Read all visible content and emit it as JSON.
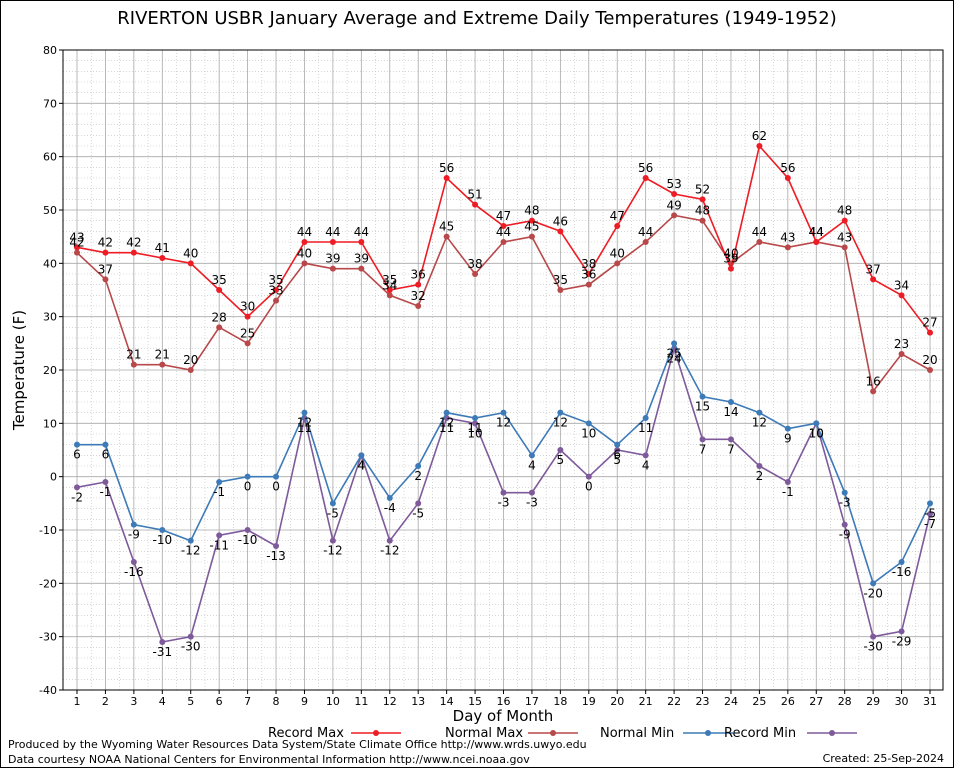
{
  "title": "RIVERTON USBR January Average and Extreme Daily Temperatures (1949-1952)",
  "footer": {
    "line1": "Produced by the Wyoming Water Resources Data System/State Climate Office http://www.wrds.uwyo.edu",
    "line2": "Data courtesy NOAA National Centers for Environmental Information http://www.ncei.noaa.gov",
    "created": "Created:  25-Sep-2024"
  },
  "chart_data": {
    "type": "line",
    "title": "RIVERTON USBR January Average and Extreme Daily Temperatures (1949-1952)",
    "xlabel": "Day of Month",
    "ylabel": "Temperature (F)",
    "xlim": [
      1,
      31
    ],
    "ylim": [
      -40,
      80
    ],
    "yticks": [
      -40,
      -30,
      -20,
      -10,
      0,
      10,
      20,
      30,
      40,
      50,
      60,
      70,
      80
    ],
    "x": [
      1,
      2,
      3,
      4,
      5,
      6,
      7,
      8,
      9,
      10,
      11,
      12,
      13,
      14,
      15,
      16,
      17,
      18,
      19,
      20,
      21,
      22,
      23,
      24,
      25,
      26,
      27,
      28,
      29,
      30,
      31
    ],
    "grid": true,
    "legend_position": "bottom",
    "series": [
      {
        "name": "Record Max",
        "color": "#ee1c24",
        "values": [
          43,
          42,
          42,
          41,
          40,
          35,
          30,
          35,
          44,
          44,
          44,
          35,
          36,
          56,
          51,
          47,
          48,
          46,
          38,
          47,
          56,
          53,
          52,
          39,
          62,
          56,
          44,
          48,
          37,
          34,
          27
        ]
      },
      {
        "name": "Normal Max",
        "color": "#b8484a",
        "values": [
          42,
          37,
          21,
          21,
          20,
          28,
          25,
          33,
          40,
          39,
          39,
          34,
          32,
          45,
          38,
          44,
          45,
          35,
          36,
          40,
          44,
          49,
          48,
          40,
          44,
          43,
          44,
          43,
          16,
          23,
          20
        ]
      },
      {
        "name": "Normal Min",
        "color": "#3d7ab8",
        "values": [
          6,
          6,
          -9,
          -10,
          -12,
          -1,
          0,
          0,
          12,
          -5,
          4,
          -4,
          2,
          12,
          11,
          12,
          4,
          12,
          10,
          6,
          11,
          25,
          15,
          14,
          12,
          9,
          10,
          -3,
          -20,
          -16,
          -5
        ]
      },
      {
        "name": "Record Min",
        "color": "#7e5a9b",
        "values": [
          -2,
          -1,
          -16,
          -31,
          -30,
          -11,
          -10,
          -13,
          11,
          -12,
          4,
          -12,
          -5,
          11,
          10,
          -3,
          -3,
          5,
          0,
          5,
          4,
          24,
          7,
          7,
          2,
          -1,
          10,
          -9,
          -30,
          -29,
          -7
        ]
      }
    ]
  }
}
